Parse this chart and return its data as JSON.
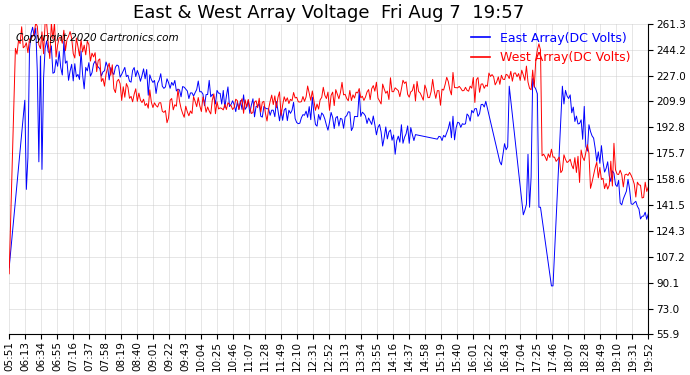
{
  "title": "East & West Array Voltage  Fri Aug 7  19:57",
  "copyright": "Copyright 2020 Cartronics.com",
  "legend_east": "East Array(DC Volts)",
  "legend_west": "West Array(DC Volts)",
  "east_color": "#0000ff",
  "west_color": "#ff0000",
  "ylim_min": 55.9,
  "ylim_max": 261.3,
  "yticks": [
    55.9,
    73.0,
    90.1,
    107.2,
    124.3,
    141.5,
    158.6,
    175.7,
    192.8,
    209.9,
    227.0,
    244.2,
    261.3
  ],
  "bg_color": "#ffffff",
  "plot_bg_color": "#ffffff",
  "grid_color": "#cccccc",
  "title_fontsize": 13,
  "legend_fontsize": 9,
  "tick_fontsize": 7.5,
  "copyright_fontsize": 7.5,
  "xtick_labels": [
    "05:51",
    "06:13",
    "06:34",
    "06:55",
    "07:16",
    "07:37",
    "07:58",
    "08:19",
    "08:40",
    "09:01",
    "09:22",
    "09:43",
    "10:04",
    "10:25",
    "10:46",
    "11:07",
    "11:28",
    "11:49",
    "12:10",
    "12:31",
    "12:52",
    "13:13",
    "13:34",
    "13:55",
    "14:16",
    "14:37",
    "14:58",
    "15:19",
    "15:40",
    "16:01",
    "16:22",
    "16:43",
    "17:04",
    "17:25",
    "17:46",
    "18:07",
    "18:28",
    "18:49",
    "19:10",
    "19:31",
    "19:52"
  ]
}
